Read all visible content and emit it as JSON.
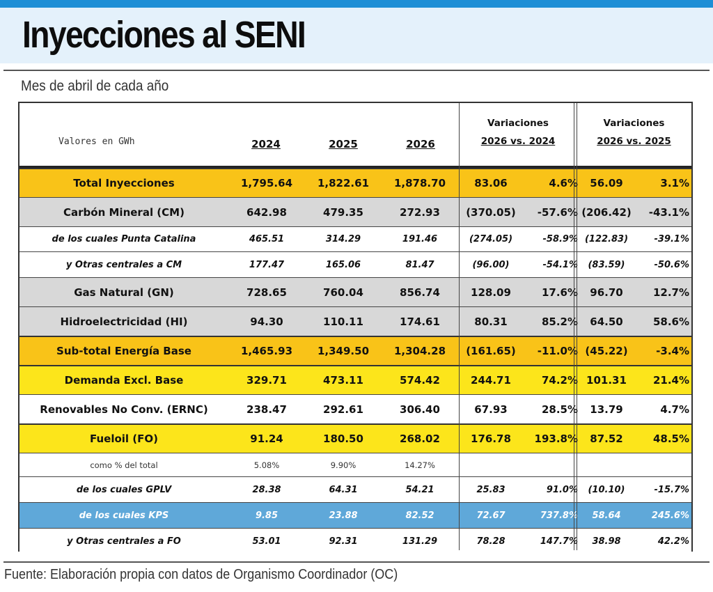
{
  "title": "Inyecciones al SENI",
  "subtitle": "Mes de abril de cada año",
  "header": {
    "units": "Valores en GWh",
    "years": [
      "2024",
      "2025",
      "2026"
    ],
    "variation1": {
      "line1": "Variaciones",
      "line2": "2026 vs. 2024"
    },
    "variation2": {
      "line1": "Variaciones",
      "line2": "2026 vs. 2025"
    }
  },
  "colors": {
    "orange": "#f9c318",
    "gray": "#d8d8d8",
    "yellow": "#fce51b",
    "blue": "#5fa8d9",
    "accent_strip": "#1e8fd6"
  },
  "rows": [
    {
      "label": "Total Inyecciones",
      "y2024": "1,795.64",
      "y2025": "1,822.61",
      "y2026": "1,878.70",
      "v1": "83.06",
      "p1": "4.6%",
      "v2": "56.09",
      "p2": "3.1%"
    },
    {
      "label": "Carbón Mineral (CM)",
      "y2024": "642.98",
      "y2025": "479.35",
      "y2026": "272.93",
      "v1": "(370.05)",
      "p1": "-57.6%",
      "v2": "(206.42)",
      "p2": "-43.1%"
    },
    {
      "label": "de los cuales Punta Catalina",
      "y2024": "465.51",
      "y2025": "314.29",
      "y2026": "191.46",
      "v1": "(274.05)",
      "p1": "-58.9%",
      "v2": "(122.83)",
      "p2": "-39.1%"
    },
    {
      "label": "y Otras centrales a CM",
      "y2024": "177.47",
      "y2025": "165.06",
      "y2026": "81.47",
      "v1": "(96.00)",
      "p1": "-54.1%",
      "v2": "(83.59)",
      "p2": "-50.6%"
    },
    {
      "label": "Gas Natural (GN)",
      "y2024": "728.65",
      "y2025": "760.04",
      "y2026": "856.74",
      "v1": "128.09",
      "p1": "17.6%",
      "v2": "96.70",
      "p2": "12.7%"
    },
    {
      "label": "Hidroelectricidad (HI)",
      "y2024": "94.30",
      "y2025": "110.11",
      "y2026": "174.61",
      "v1": "80.31",
      "p1": "85.2%",
      "v2": "64.50",
      "p2": "58.6%"
    },
    {
      "label": "Sub-total Energía Base",
      "y2024": "1,465.93",
      "y2025": "1,349.50",
      "y2026": "1,304.28",
      "v1": "(161.65)",
      "p1": "-11.0%",
      "v2": "(45.22)",
      "p2": "-3.4%"
    },
    {
      "label": "Demanda Excl. Base",
      "y2024": "329.71",
      "y2025": "473.11",
      "y2026": "574.42",
      "v1": "244.71",
      "p1": "74.2%",
      "v2": "101.31",
      "p2": "21.4%"
    },
    {
      "label": "Renovables No Conv. (ERNC)",
      "y2024": "238.47",
      "y2025": "292.61",
      "y2026": "306.40",
      "v1": "67.93",
      "p1": "28.5%",
      "v2": "13.79",
      "p2": "4.7%"
    },
    {
      "label": "Fueloil (FO)",
      "y2024": "91.24",
      "y2025": "180.50",
      "y2026": "268.02",
      "v1": "176.78",
      "p1": "193.8%",
      "v2": "87.52",
      "p2": "48.5%"
    },
    {
      "label": "como % del total",
      "y2024": "5.08%",
      "y2025": "9.90%",
      "y2026": "14.27%",
      "v1": "",
      "p1": "",
      "v2": "",
      "p2": ""
    },
    {
      "label": "de los cuales GPLV",
      "y2024": "28.38",
      "y2025": "64.31",
      "y2026": "54.21",
      "v1": "25.83",
      "p1": "91.0%",
      "v2": "(10.10)",
      "p2": "-15.7%"
    },
    {
      "label": "de los cuales KPS",
      "y2024": "9.85",
      "y2025": "23.88",
      "y2026": "82.52",
      "v1": "72.67",
      "p1": "737.8%",
      "v2": "58.64",
      "p2": "245.6%"
    },
    {
      "label": "y Otras centrales a FO",
      "y2024": "53.01",
      "y2025": "92.31",
      "y2026": "131.29",
      "v1": "78.28",
      "p1": "147.7%",
      "v2": "38.98",
      "p2": "42.2%"
    }
  ],
  "footer": "Fuente: Elaboración propia con datos de Organismo Coordinador (OC)"
}
